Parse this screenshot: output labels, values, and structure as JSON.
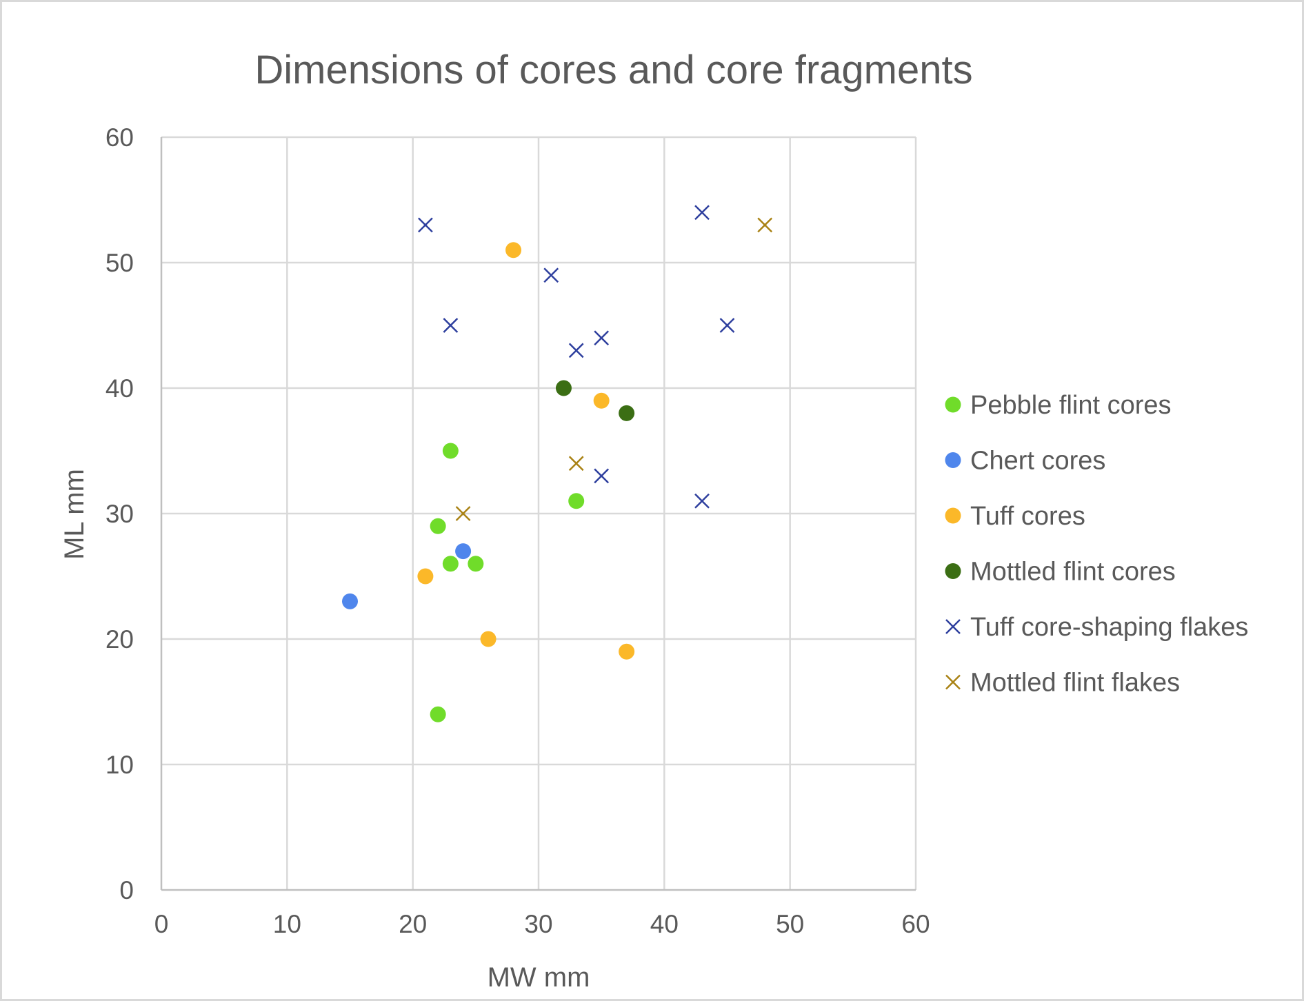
{
  "chart_data": {
    "type": "scatter",
    "title": "Dimensions of cores and core fragments",
    "xlabel": "MW mm",
    "ylabel": "ML mm",
    "xlim": [
      0,
      60
    ],
    "ylim": [
      0,
      60
    ],
    "x_ticks": [
      0,
      10,
      20,
      30,
      40,
      50,
      60
    ],
    "y_ticks": [
      0,
      10,
      20,
      30,
      40,
      50,
      60
    ],
    "grid": true,
    "legend_position": "right",
    "series": [
      {
        "name": "Pebble flint cores",
        "marker": "circle",
        "color": "#70dc2a",
        "points": [
          [
            23,
            35
          ],
          [
            22,
            29
          ],
          [
            23,
            26
          ],
          [
            25,
            26
          ],
          [
            33,
            31
          ],
          [
            22,
            14
          ]
        ]
      },
      {
        "name": "Chert cores",
        "marker": "circle",
        "color": "#4f86ec",
        "points": [
          [
            15,
            23
          ],
          [
            24,
            27
          ]
        ]
      },
      {
        "name": "Tuff cores",
        "marker": "circle",
        "color": "#fbb829",
        "points": [
          [
            28,
            51
          ],
          [
            35,
            39
          ],
          [
            21,
            25
          ],
          [
            26,
            20
          ],
          [
            37,
            19
          ]
        ]
      },
      {
        "name": "Mottled flint cores",
        "marker": "circle",
        "color": "#3b6e14",
        "points": [
          [
            32,
            40
          ],
          [
            37,
            38
          ]
        ]
      },
      {
        "name": "Tuff core-shaping flakes",
        "marker": "x",
        "color": "#2e3f9e",
        "points": [
          [
            21,
            53
          ],
          [
            23,
            45
          ],
          [
            31,
            49
          ],
          [
            33,
            43
          ],
          [
            35,
            44
          ],
          [
            43,
            54
          ],
          [
            45,
            45
          ],
          [
            35,
            33
          ],
          [
            43,
            31
          ]
        ]
      },
      {
        "name": "Mottled flint flakes",
        "marker": "x",
        "color": "#a98214",
        "points": [
          [
            48,
            53
          ],
          [
            33,
            34
          ],
          [
            24,
            30
          ]
        ]
      }
    ]
  }
}
